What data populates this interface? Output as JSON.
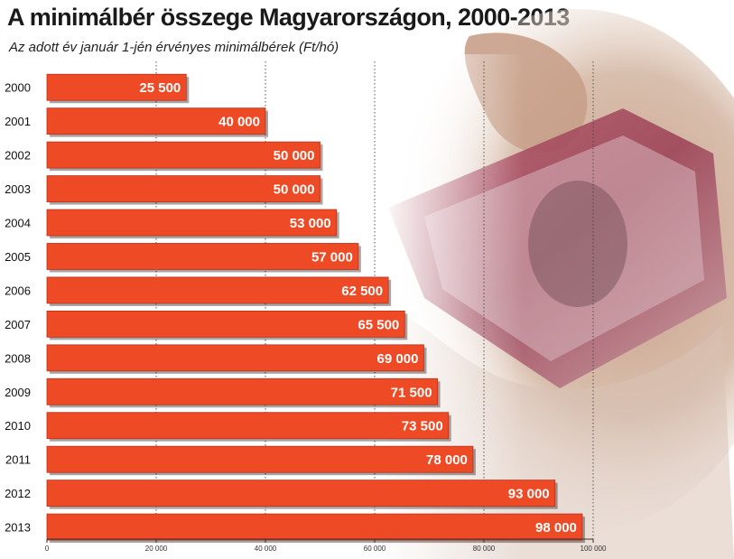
{
  "header": {
    "title": "A minimálbér összege Magyarországon, 2000-2013",
    "subtitle": "Az adott év január 1-jén érvényes minimálbérek (Ft/hó)"
  },
  "colors": {
    "bar": "#ee4a25",
    "bar_stroke": "#b8321a",
    "value_text": "#ffffff",
    "grid": "#444444"
  },
  "chart_data": {
    "type": "bar",
    "orientation": "horizontal",
    "title": "A minimálbér összege Magyarországon, 2000-2013",
    "subtitle": "Az adott év január 1-jén érvényes minimálbérek (Ft/hó)",
    "categories": [
      "2000",
      "2001",
      "2002",
      "2003",
      "2004",
      "2005",
      "2006",
      "2007",
      "2008",
      "2009",
      "2010",
      "2011",
      "2012",
      "2013"
    ],
    "values": [
      25500,
      40000,
      50000,
      50000,
      53000,
      57000,
      62500,
      65500,
      69000,
      71500,
      73500,
      78000,
      93000,
      98000
    ],
    "value_labels": [
      "25 500",
      "40 000",
      "50 000",
      "50 000",
      "53 000",
      "57 000",
      "62 500",
      "65 500",
      "69 000",
      "71 500",
      "73 500",
      "78 000",
      "93 000",
      "98 000"
    ],
    "x_ticks": [
      0,
      20000,
      40000,
      60000,
      80000,
      100000
    ],
    "x_tick_labels": [
      "0",
      "20 000",
      "40 000",
      "60 000",
      "80 000",
      "100 000"
    ],
    "xlim": [
      0,
      100000
    ],
    "grid": "vertical dotted",
    "legend": "none"
  }
}
